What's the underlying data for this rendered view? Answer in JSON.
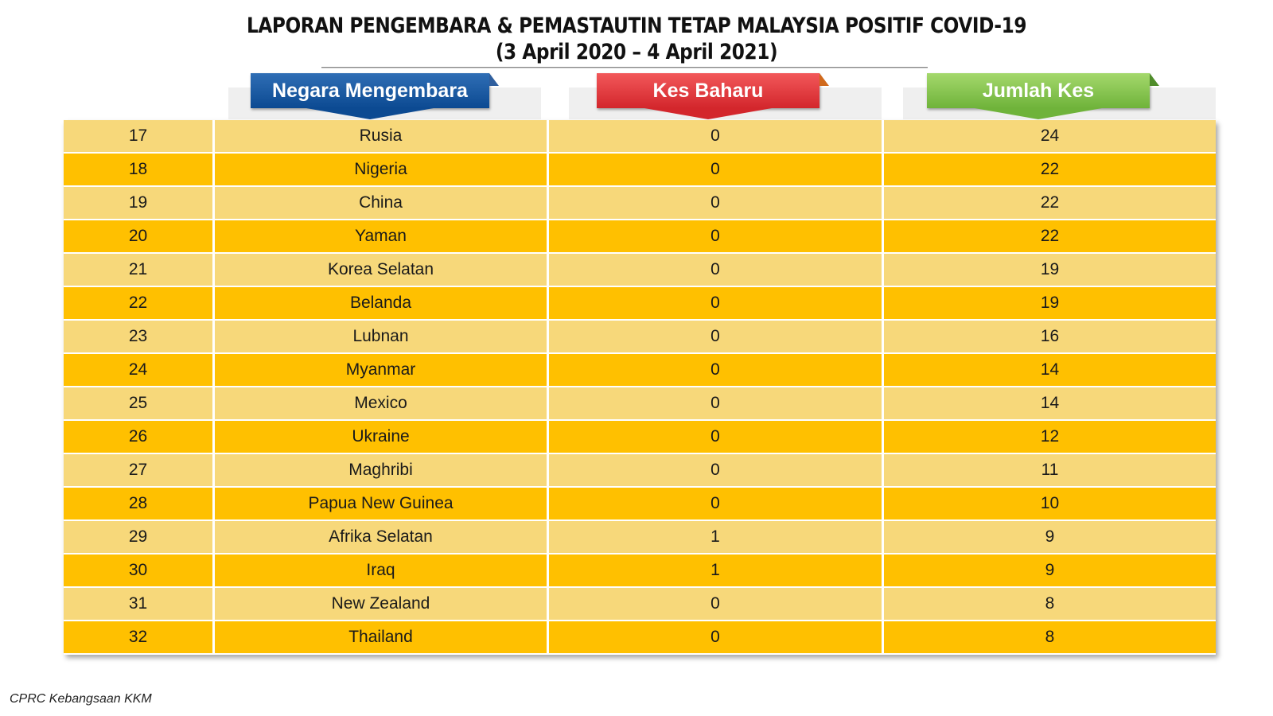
{
  "title": {
    "line1": "LAPORAN PENGEMBARA & PEMASTAUTIN TETAP MALAYSIA POSITIF COVID-19",
    "line2": "(3 April 2020 – 4 April 2021)"
  },
  "headers": {
    "country": "Negara Mengembara",
    "new_cases": "Kes Baharu",
    "total_cases": "Jumlah Kes"
  },
  "colors": {
    "header_country": "#0c4a92",
    "header_new": "#d3262c",
    "header_total": "#6fb33a",
    "row_light": "#f7d87a",
    "row_dark": "#ffc000"
  },
  "rows": [
    {
      "rank": "17",
      "country": "Rusia",
      "new": "0",
      "total": "24"
    },
    {
      "rank": "18",
      "country": "Nigeria",
      "new": "0",
      "total": "22"
    },
    {
      "rank": "19",
      "country": "China",
      "new": "0",
      "total": "22"
    },
    {
      "rank": "20",
      "country": "Yaman",
      "new": "0",
      "total": "22"
    },
    {
      "rank": "21",
      "country": "Korea Selatan",
      "new": "0",
      "total": "19"
    },
    {
      "rank": "22",
      "country": "Belanda",
      "new": "0",
      "total": "19"
    },
    {
      "rank": "23",
      "country": "Lubnan",
      "new": "0",
      "total": "16"
    },
    {
      "rank": "24",
      "country": "Myanmar",
      "new": "0",
      "total": "14"
    },
    {
      "rank": "25",
      "country": "Mexico",
      "new": "0",
      "total": "14"
    },
    {
      "rank": "26",
      "country": "Ukraine",
      "new": "0",
      "total": "12"
    },
    {
      "rank": "27",
      "country": "Maghribi",
      "new": "0",
      "total": "11"
    },
    {
      "rank": "28",
      "country": "Papua New Guinea",
      "new": "0",
      "total": "10"
    },
    {
      "rank": "29",
      "country": "Afrika Selatan",
      "new": "1",
      "total": "9"
    },
    {
      "rank": "30",
      "country": "Iraq",
      "new": "1",
      "total": "9"
    },
    {
      "rank": "31",
      "country": "New Zealand",
      "new": "0",
      "total": "8"
    },
    {
      "rank": "32",
      "country": "Thailand",
      "new": "0",
      "total": "8"
    }
  ],
  "footer": "CPRC Kebangsaan KKM"
}
